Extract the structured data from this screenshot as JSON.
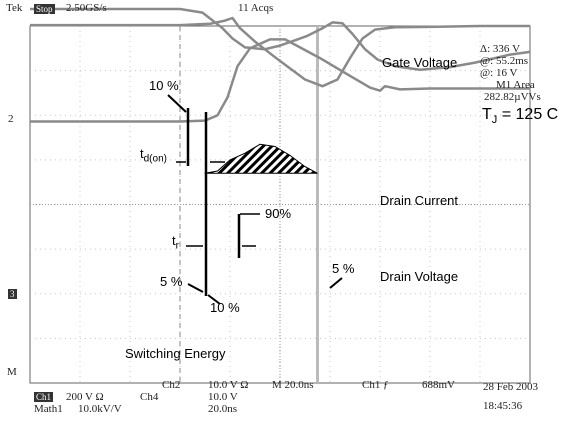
{
  "header": {
    "brand": "Tek",
    "mode": "Stop",
    "sample_rate": "2.50GS/s",
    "acquisitions": "11 Acqs"
  },
  "readout": {
    "delta_label": "Δ:",
    "delta_value": "336 V",
    "at_label": "@:",
    "at_value": "55.2ms",
    "at2_label": "@:",
    "at2_value": "16 V",
    "area_label": "M1 Area",
    "area_value": "282.82µVVs"
  },
  "annotations": {
    "tj_main": "T",
    "tj_sub": "J",
    "tj_rest": " = 125 C",
    "pct10_top": "10 %",
    "td_main": "t",
    "td_sub": "d(on)",
    "pct90": "90%",
    "tr_main": "t",
    "tr_sub": "r",
    "pct5_left": "5 %",
    "pct10_bottom": "10 %",
    "pct5_right": "5 %",
    "switching_energy": "Switching Energy"
  },
  "channel_markers": {
    "ch2": "2",
    "ch3": "3",
    "math": "M"
  },
  "footer": {
    "ch1_tag": "Ch1",
    "ch1_scale": "200 V",
    "ch1_unit": "Ω",
    "ch2_label": "Ch2",
    "ch2_scale": "10.0 V",
    "ch2_unit": "Ω",
    "ch4_label": "Ch4",
    "ch4_scale": "10.0 V",
    "time_scale": "M 20.0ns",
    "trigger": "Ch1 ƒ",
    "trigger_level": "688mV",
    "math_label": "Math1",
    "math_scale": "10.0kV/V",
    "math_time": "20.0ns",
    "date": "28 Feb 2003",
    "time": "18:45:36"
  },
  "chart_data": {
    "type": "line",
    "x_divisions": 10,
    "y_divisions": 8,
    "cursor_x_div": [
      3.0,
      5.75
    ],
    "series": [
      {
        "name": "Gate Voltage",
        "color": "#8a8a8a",
        "points": [
          [
            0,
            -0.38
          ],
          [
            3.0,
            -0.38
          ],
          [
            3.45,
            -0.3
          ],
          [
            3.85,
            0.05
          ],
          [
            4.05,
            0.28
          ],
          [
            4.3,
            0.48
          ],
          [
            4.7,
            0.52
          ],
          [
            5.0,
            0.44
          ],
          [
            5.3,
            0.32
          ],
          [
            5.55,
            0.22
          ],
          [
            5.85,
            0.05
          ],
          [
            6.05,
            -0.08
          ],
          [
            6.25,
            -0.06
          ],
          [
            6.45,
            0.18
          ],
          [
            6.7,
            0.52
          ],
          [
            6.95,
            0.75
          ],
          [
            7.3,
            0.9
          ],
          [
            7.8,
            0.98
          ],
          [
            8.4,
            0.92
          ],
          [
            8.9,
            0.82
          ],
          [
            9.3,
            0.72
          ],
          [
            9.6,
            0.64
          ],
          [
            10,
            0.58
          ]
        ]
      },
      {
        "name": "Drain Current",
        "color": "#8a8a8a",
        "points": [
          [
            0,
            -0.02
          ],
          [
            3.0,
            -0.02
          ],
          [
            3.6,
            -0.05
          ],
          [
            3.9,
            -0.12
          ],
          [
            4.05,
            -0.18
          ],
          [
            4.2,
            0.05
          ],
          [
            4.5,
            0.35
          ],
          [
            4.9,
            0.7
          ],
          [
            5.2,
            0.95
          ],
          [
            5.5,
            1.2
          ],
          [
            5.85,
            1.35
          ],
          [
            6.15,
            1.2
          ],
          [
            6.4,
            0.72
          ],
          [
            6.65,
            0.28
          ],
          [
            6.9,
            0.08
          ],
          [
            7.3,
            0.03
          ],
          [
            8,
            0.02
          ],
          [
            9,
            0.0
          ],
          [
            10,
            0.0
          ]
        ]
      },
      {
        "name": "Drain Voltage",
        "color": "#8a8a8a",
        "points": [
          [
            0,
            2.14
          ],
          [
            3.0,
            2.14
          ],
          [
            3.5,
            2.12
          ],
          [
            3.75,
            2.0
          ],
          [
            3.95,
            1.6
          ],
          [
            4.15,
            0.9
          ],
          [
            4.4,
            0.5
          ],
          [
            4.8,
            0.3
          ],
          [
            5.1,
            0.3
          ],
          [
            5.4,
            0.48
          ],
          [
            5.8,
            0.72
          ],
          [
            6.3,
            1.05
          ],
          [
            6.8,
            1.38
          ],
          [
            7.0,
            1.45
          ],
          [
            7.1,
            1.35
          ],
          [
            7.4,
            1.42
          ],
          [
            8,
            1.4
          ],
          [
            9,
            1.4
          ],
          [
            10,
            1.4
          ]
        ]
      },
      {
        "name": "Switching Energy",
        "color": "#000000",
        "points": [
          [
            3.5,
            3.3
          ],
          [
            3.75,
            3.25
          ],
          [
            4.0,
            3.0
          ],
          [
            4.3,
            2.85
          ],
          [
            4.6,
            2.65
          ],
          [
            4.9,
            2.7
          ],
          [
            5.2,
            2.9
          ],
          [
            5.5,
            3.15
          ],
          [
            5.75,
            3.3
          ]
        ]
      }
    ]
  }
}
